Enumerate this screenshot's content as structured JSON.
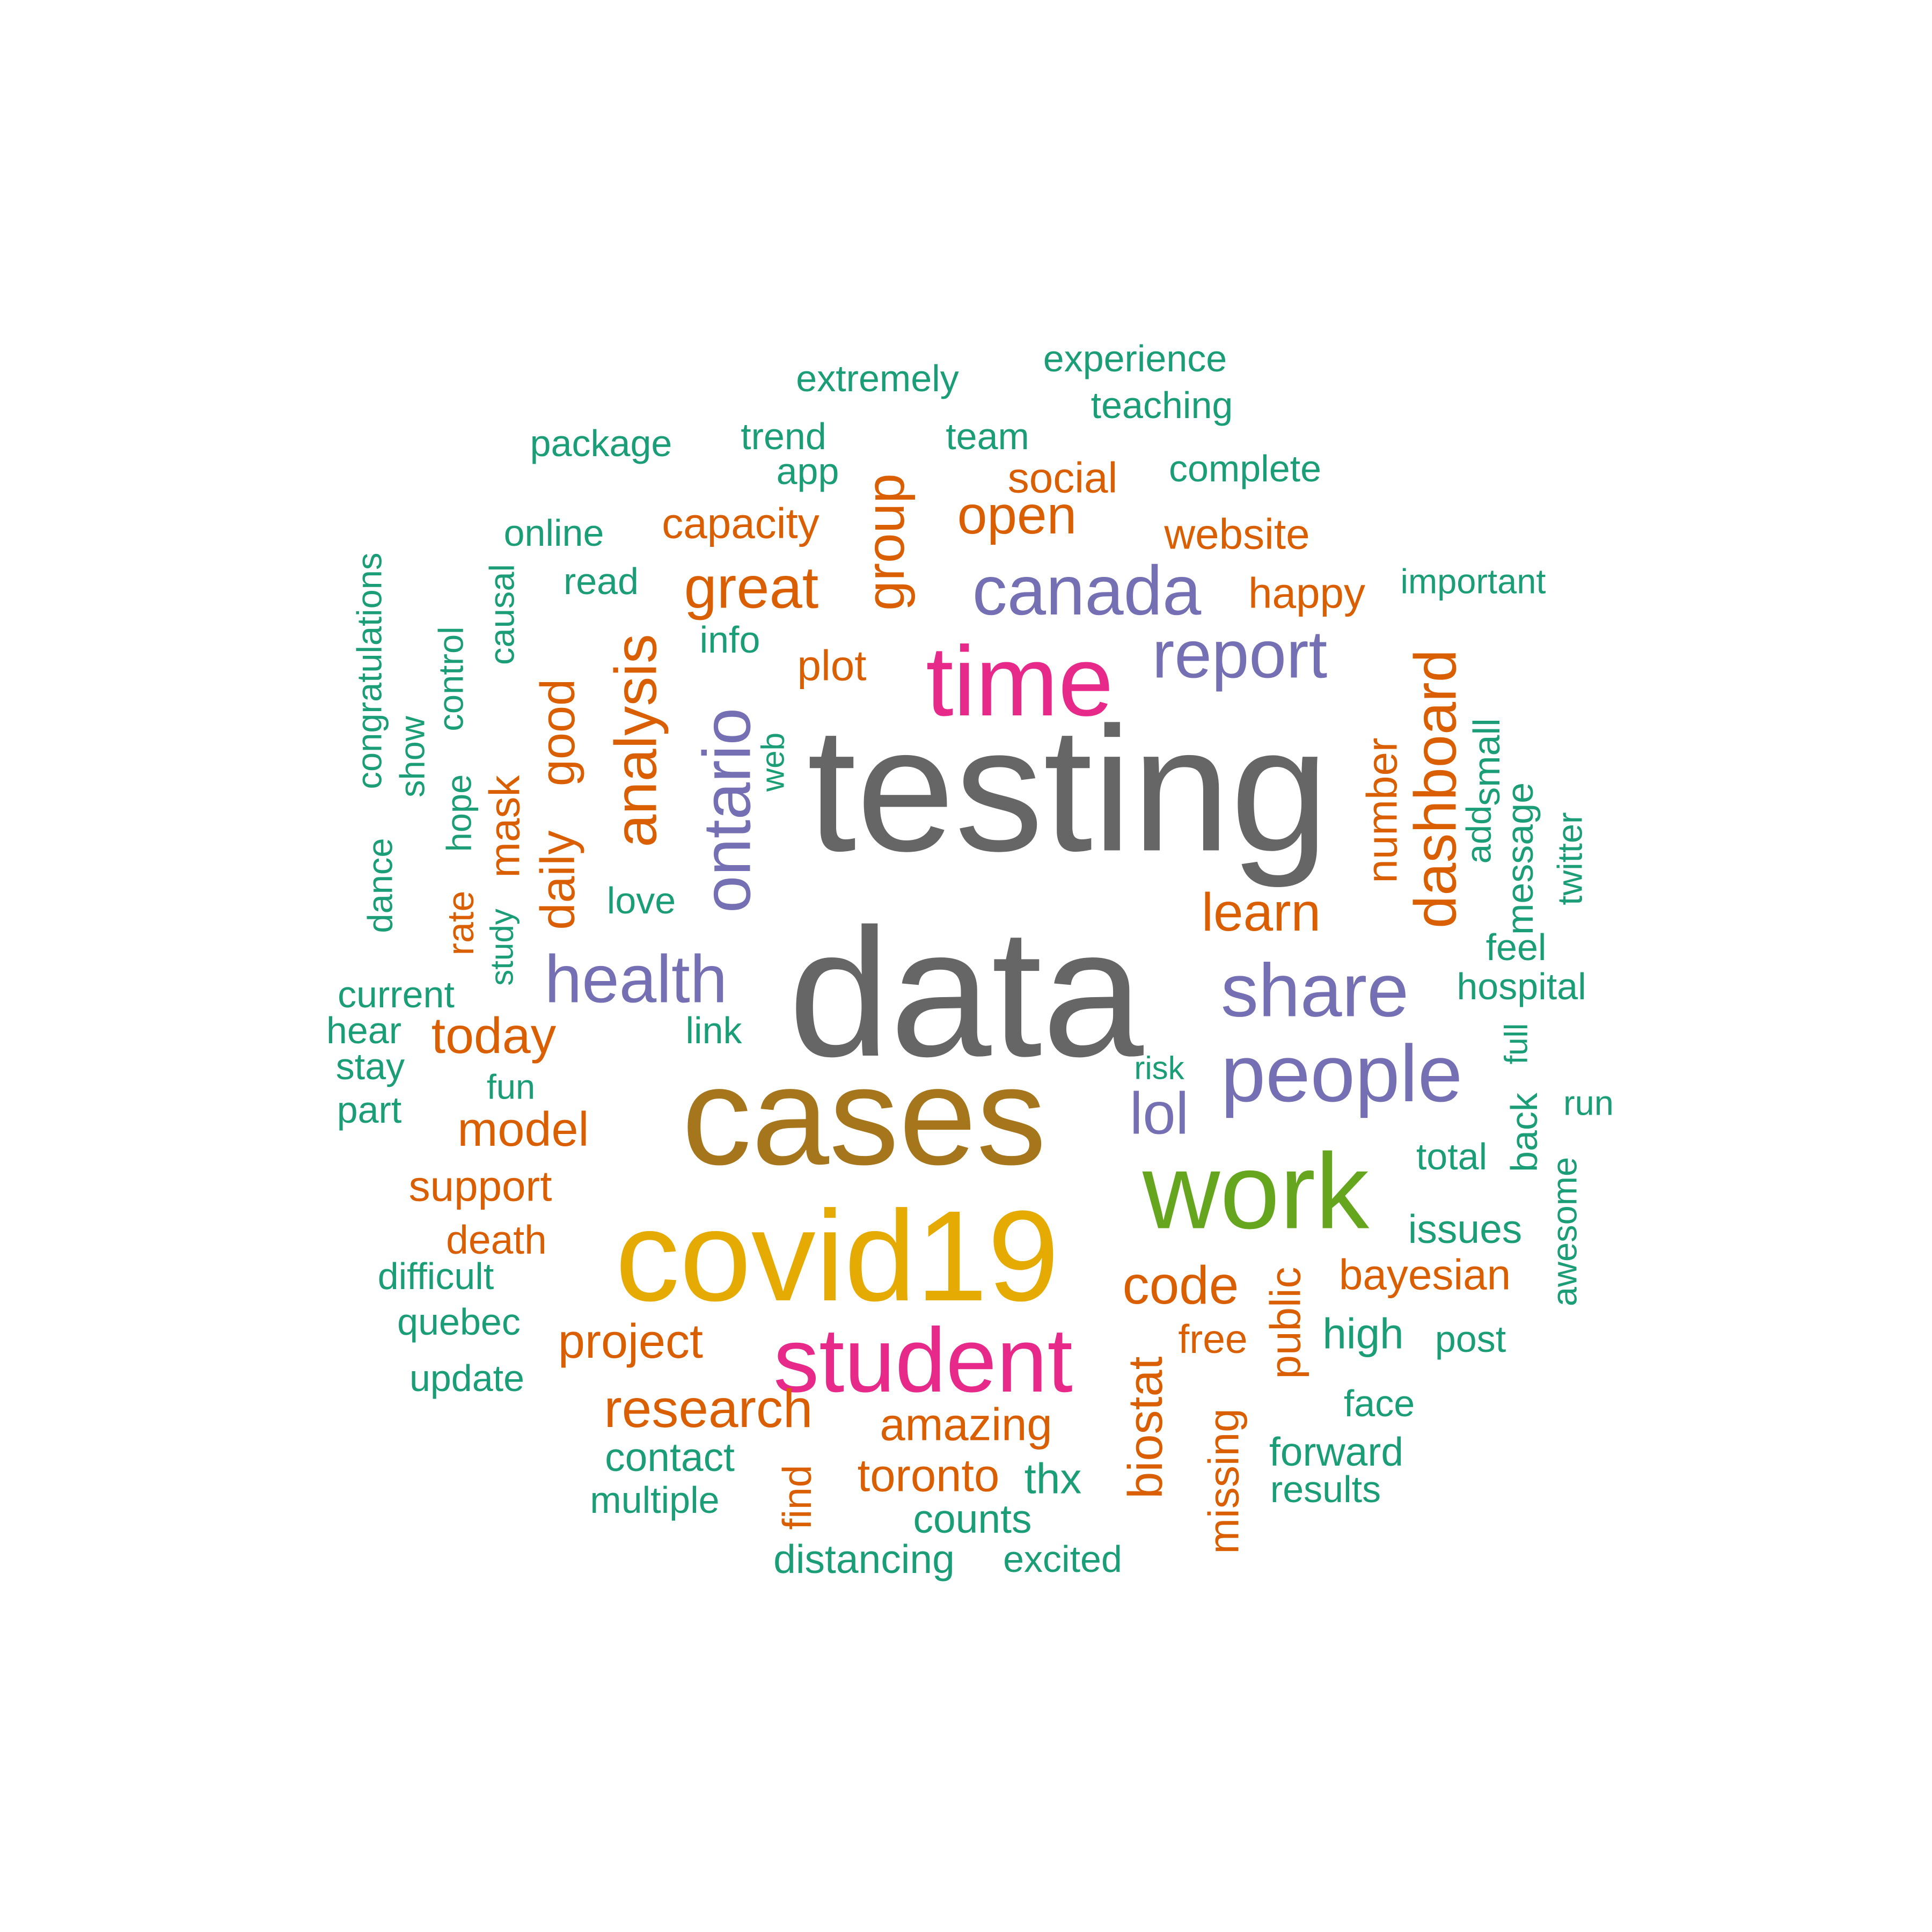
{
  "colors": {
    "green": "#1b9e77",
    "orange": "#d95f02",
    "purple": "#7570b3",
    "magenta": "#e7298a",
    "lime": "#66a61e",
    "gold": "#e6ab02",
    "brown": "#a6761d",
    "gray": "#666666"
  },
  "words": [
    {
      "text": "testing",
      "color": "gray"
    },
    {
      "text": "data",
      "color": "gray"
    },
    {
      "text": "cases",
      "color": "brown"
    },
    {
      "text": "covid19",
      "color": "gold"
    },
    {
      "text": "work",
      "color": "lime"
    },
    {
      "text": "time",
      "color": "magenta"
    },
    {
      "text": "student",
      "color": "magenta"
    },
    {
      "text": "people",
      "color": "purple"
    },
    {
      "text": "share",
      "color": "purple"
    },
    {
      "text": "canada",
      "color": "purple"
    },
    {
      "text": "health",
      "color": "purple"
    },
    {
      "text": "report",
      "color": "purple"
    },
    {
      "text": "ontario",
      "color": "purple"
    },
    {
      "text": "lol",
      "color": "purple"
    },
    {
      "text": "analysis",
      "color": "orange"
    },
    {
      "text": "great",
      "color": "orange"
    },
    {
      "text": "dashboard",
      "color": "orange"
    },
    {
      "text": "group",
      "color": "orange"
    },
    {
      "text": "open",
      "color": "orange"
    },
    {
      "text": "research",
      "color": "orange"
    },
    {
      "text": "code",
      "color": "orange"
    },
    {
      "text": "today",
      "color": "orange"
    },
    {
      "text": "learn",
      "color": "orange"
    },
    {
      "text": "model",
      "color": "orange"
    },
    {
      "text": "biostat",
      "color": "orange"
    },
    {
      "text": "daily",
      "color": "orange"
    },
    {
      "text": "good",
      "color": "orange"
    },
    {
      "text": "project",
      "color": "orange"
    },
    {
      "text": "toronto",
      "color": "orange"
    },
    {
      "text": "amazing",
      "color": "orange"
    },
    {
      "text": "capacity",
      "color": "orange"
    },
    {
      "text": "website",
      "color": "orange"
    },
    {
      "text": "support",
      "color": "orange"
    },
    {
      "text": "public",
      "color": "orange"
    },
    {
      "text": "missing",
      "color": "orange"
    },
    {
      "text": "bayesian",
      "color": "orange"
    },
    {
      "text": "happy",
      "color": "orange"
    },
    {
      "text": "social",
      "color": "orange"
    },
    {
      "text": "number",
      "color": "orange"
    },
    {
      "text": "plot",
      "color": "orange"
    },
    {
      "text": "mask",
      "color": "orange"
    },
    {
      "text": "death",
      "color": "orange"
    },
    {
      "text": "free",
      "color": "orange"
    },
    {
      "text": "find",
      "color": "orange"
    },
    {
      "text": "rate",
      "color": "orange"
    },
    {
      "text": "extremely",
      "color": "green"
    },
    {
      "text": "experience",
      "color": "green"
    },
    {
      "text": "teaching",
      "color": "green"
    },
    {
      "text": "package",
      "color": "green"
    },
    {
      "text": "trend",
      "color": "green"
    },
    {
      "text": "team",
      "color": "green"
    },
    {
      "text": "app",
      "color": "green"
    },
    {
      "text": "complete",
      "color": "green"
    },
    {
      "text": "online",
      "color": "green"
    },
    {
      "text": "read",
      "color": "green"
    },
    {
      "text": "important",
      "color": "green"
    },
    {
      "text": "info",
      "color": "green"
    },
    {
      "text": "congratulations",
      "color": "green"
    },
    {
      "text": "causal",
      "color": "green"
    },
    {
      "text": "control",
      "color": "green"
    },
    {
      "text": "show",
      "color": "green"
    },
    {
      "text": "hope",
      "color": "green"
    },
    {
      "text": "web",
      "color": "green"
    },
    {
      "text": "small",
      "color": "green"
    },
    {
      "text": "add",
      "color": "green"
    },
    {
      "text": "message",
      "color": "green"
    },
    {
      "text": "twitter",
      "color": "green"
    },
    {
      "text": "dance",
      "color": "green"
    },
    {
      "text": "love",
      "color": "green"
    },
    {
      "text": "study",
      "color": "green"
    },
    {
      "text": "feel",
      "color": "green"
    },
    {
      "text": "current",
      "color": "green"
    },
    {
      "text": "hospital",
      "color": "green"
    },
    {
      "text": "hear",
      "color": "green"
    },
    {
      "text": "link",
      "color": "green"
    },
    {
      "text": "full",
      "color": "green"
    },
    {
      "text": "stay",
      "color": "green"
    },
    {
      "text": "risk",
      "color": "green"
    },
    {
      "text": "fun",
      "color": "green"
    },
    {
      "text": "part",
      "color": "green"
    },
    {
      "text": "back",
      "color": "green"
    },
    {
      "text": "run",
      "color": "green"
    },
    {
      "text": "total",
      "color": "green"
    },
    {
      "text": "awesome",
      "color": "green"
    },
    {
      "text": "issues",
      "color": "green"
    },
    {
      "text": "difficult",
      "color": "green"
    },
    {
      "text": "quebec",
      "color": "green"
    },
    {
      "text": "high",
      "color": "green"
    },
    {
      "text": "post",
      "color": "green"
    },
    {
      "text": "update",
      "color": "green"
    },
    {
      "text": "face",
      "color": "green"
    },
    {
      "text": "contact",
      "color": "green"
    },
    {
      "text": "forward",
      "color": "green"
    },
    {
      "text": "thx",
      "color": "green"
    },
    {
      "text": "multiple",
      "color": "green"
    },
    {
      "text": "counts",
      "color": "green"
    },
    {
      "text": "results",
      "color": "green"
    },
    {
      "text": "distancing",
      "color": "green"
    },
    {
      "text": "excited",
      "color": "green"
    }
  ]
}
